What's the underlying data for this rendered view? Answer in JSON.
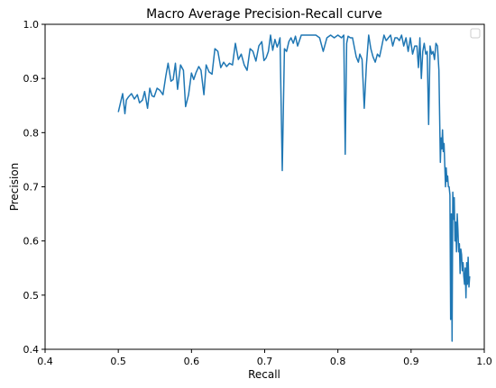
{
  "chart_data": {
    "type": "line",
    "title": "Macro Average Precision-Recall curve",
    "xlabel": "Recall",
    "ylabel": "Precision",
    "xlim": [
      0.4,
      1.0
    ],
    "ylim": [
      0.4,
      1.0
    ],
    "xticks": [
      "0.4",
      "0.5",
      "0.6",
      "0.7",
      "0.8",
      "0.9",
      "1.0"
    ],
    "yticks": [
      "0.4",
      "0.5",
      "0.6",
      "0.7",
      "0.8",
      "0.9",
      "1.0"
    ],
    "grid": false,
    "legend": {
      "placement": "top-right",
      "entries": []
    },
    "series_color": "#1f77b4",
    "series": [
      {
        "x": [
          0.5,
          0.503,
          0.506,
          0.509,
          0.511,
          0.514,
          0.518,
          0.522,
          0.526,
          0.529,
          0.533,
          0.536,
          0.54,
          0.543,
          0.546,
          0.549,
          0.553,
          0.557,
          0.561,
          0.565,
          0.568,
          0.572,
          0.575,
          0.578,
          0.581,
          0.585,
          0.589,
          0.592,
          0.596,
          0.6,
          0.603,
          0.606,
          0.61,
          0.613,
          0.617,
          0.62,
          0.624,
          0.628,
          0.632,
          0.636,
          0.64,
          0.644,
          0.648,
          0.652,
          0.656,
          0.66,
          0.664,
          0.668,
          0.672,
          0.676,
          0.68,
          0.684,
          0.688,
          0.692,
          0.696,
          0.699,
          0.702,
          0.705,
          0.708,
          0.711,
          0.714,
          0.717,
          0.719,
          0.721,
          0.724,
          0.727,
          0.73,
          0.733,
          0.736,
          0.739,
          0.742,
          0.745,
          0.75,
          0.76,
          0.77,
          0.775,
          0.78,
          0.785,
          0.79,
          0.795,
          0.8,
          0.805,
          0.808,
          0.81,
          0.812,
          0.814,
          0.817,
          0.82,
          0.825,
          0.828,
          0.83,
          0.833,
          0.836,
          0.839,
          0.842,
          0.845,
          0.848,
          0.851,
          0.854,
          0.857,
          0.86,
          0.863,
          0.866,
          0.869,
          0.872,
          0.875,
          0.878,
          0.881,
          0.884,
          0.887,
          0.89,
          0.893,
          0.896,
          0.899,
          0.902,
          0.905,
          0.908,
          0.91,
          0.912,
          0.914,
          0.916,
          0.918,
          0.92,
          0.922,
          0.924,
          0.926,
          0.928,
          0.93,
          0.932,
          0.934,
          0.936,
          0.938,
          0.94,
          0.941,
          0.942,
          0.943,
          0.944,
          0.945,
          0.946,
          0.947,
          0.948,
          0.949,
          0.95,
          0.951,
          0.952,
          0.953,
          0.954,
          0.955,
          0.956,
          0.957,
          0.958,
          0.959,
          0.96,
          0.961,
          0.962,
          0.963,
          0.964,
          0.965,
          0.966,
          0.967,
          0.968,
          0.969,
          0.97,
          0.971,
          0.972,
          0.973,
          0.974,
          0.975,
          0.976,
          0.977,
          0.978,
          0.979,
          0.98
        ],
        "y": [
          0.838,
          0.855,
          0.872,
          0.835,
          0.86,
          0.866,
          0.872,
          0.862,
          0.87,
          0.855,
          0.86,
          0.876,
          0.845,
          0.882,
          0.868,
          0.866,
          0.882,
          0.878,
          0.87,
          0.905,
          0.928,
          0.895,
          0.898,
          0.928,
          0.88,
          0.925,
          0.915,
          0.848,
          0.87,
          0.91,
          0.898,
          0.91,
          0.922,
          0.915,
          0.87,
          0.925,
          0.912,
          0.908,
          0.955,
          0.95,
          0.92,
          0.93,
          0.922,
          0.928,
          0.925,
          0.965,
          0.935,
          0.945,
          0.925,
          0.915,
          0.955,
          0.95,
          0.932,
          0.96,
          0.968,
          0.933,
          0.938,
          0.95,
          0.98,
          0.952,
          0.972,
          0.958,
          0.965,
          0.975,
          0.73,
          0.955,
          0.95,
          0.968,
          0.975,
          0.965,
          0.978,
          0.96,
          0.98,
          0.98,
          0.98,
          0.975,
          0.95,
          0.975,
          0.98,
          0.975,
          0.98,
          0.975,
          0.98,
          0.76,
          0.965,
          0.978,
          0.975,
          0.975,
          0.94,
          0.93,
          0.945,
          0.935,
          0.845,
          0.925,
          0.98,
          0.955,
          0.94,
          0.93,
          0.945,
          0.94,
          0.96,
          0.98,
          0.97,
          0.975,
          0.98,
          0.96,
          0.975,
          0.975,
          0.97,
          0.98,
          0.96,
          0.975,
          0.95,
          0.975,
          0.945,
          0.96,
          0.96,
          0.92,
          0.975,
          0.9,
          0.95,
          0.965,
          0.945,
          0.95,
          0.815,
          0.96,
          0.945,
          0.95,
          0.935,
          0.965,
          0.96,
          0.915,
          0.745,
          0.79,
          0.77,
          0.805,
          0.765,
          0.78,
          0.74,
          0.7,
          0.735,
          0.71,
          0.72,
          0.7,
          0.7,
          0.685,
          0.455,
          0.65,
          0.415,
          0.69,
          0.64,
          0.68,
          0.6,
          0.635,
          0.58,
          0.65,
          0.62,
          0.58,
          0.595,
          0.54,
          0.585,
          0.575,
          0.545,
          0.56,
          0.535,
          0.52,
          0.55,
          0.495,
          0.56,
          0.52,
          0.57,
          0.515,
          0.535
        ]
      }
    ]
  }
}
